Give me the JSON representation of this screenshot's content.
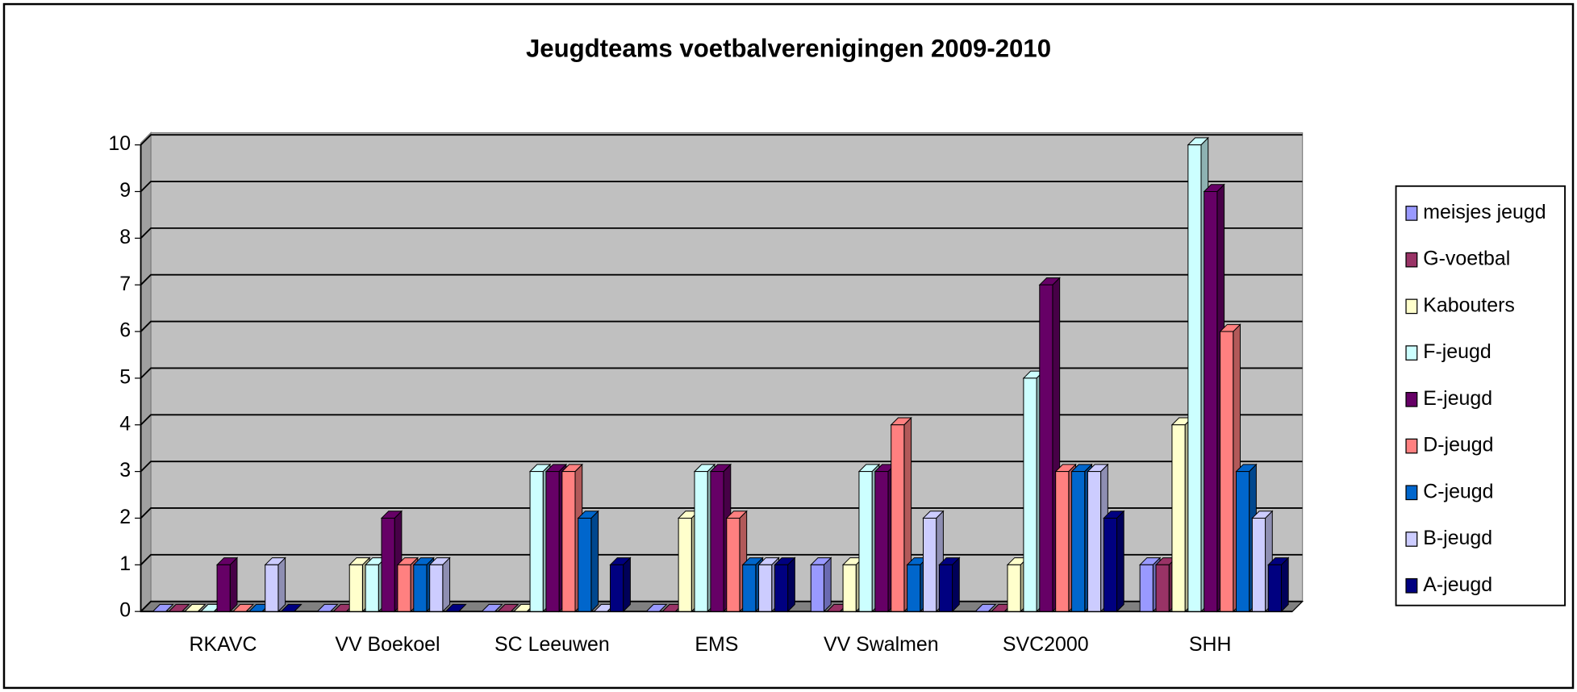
{
  "chart_data": {
    "type": "bar3d",
    "title": "Jeugdteams voetbalverenigingen 2009-2010",
    "categories": [
      "RKAVC",
      "VV Boekoel",
      "SC Leeuwen",
      "EMS",
      "VV Swalmen",
      "SVC2000",
      "SHH"
    ],
    "series": [
      {
        "name": "meisjes jeugd",
        "color": "#9999ff",
        "values": [
          0,
          0,
          0,
          0,
          1,
          0,
          1
        ]
      },
      {
        "name": "G-voetbal",
        "color": "#993366",
        "values": [
          0,
          0,
          0,
          0,
          0,
          0,
          1
        ]
      },
      {
        "name": "Kabouters",
        "color": "#ffffcc",
        "values": [
          0,
          1,
          0,
          2,
          1,
          1,
          4
        ]
      },
      {
        "name": "F-jeugd",
        "color": "#ccffff",
        "values": [
          0,
          1,
          3,
          3,
          3,
          5,
          10
        ]
      },
      {
        "name": "E-jeugd",
        "color": "#660066",
        "values": [
          1,
          2,
          3,
          3,
          3,
          7,
          9
        ]
      },
      {
        "name": "D-jeugd",
        "color": "#ff8080",
        "values": [
          0,
          1,
          3,
          2,
          4,
          3,
          6
        ]
      },
      {
        "name": "C-jeugd",
        "color": "#0066cc",
        "values": [
          0,
          1,
          2,
          1,
          1,
          3,
          3
        ]
      },
      {
        "name": "B-jeugd",
        "color": "#ccccff",
        "values": [
          1,
          1,
          0,
          1,
          2,
          3,
          2
        ]
      },
      {
        "name": "A-jeugd",
        "color": "#000080",
        "values": [
          0,
          0,
          1,
          1,
          1,
          2,
          1
        ]
      }
    ],
    "ylim": [
      0,
      10
    ],
    "yticks": [
      0,
      1,
      2,
      3,
      4,
      5,
      6,
      7,
      8,
      9,
      10
    ],
    "grid": true,
    "legend": "right"
  }
}
